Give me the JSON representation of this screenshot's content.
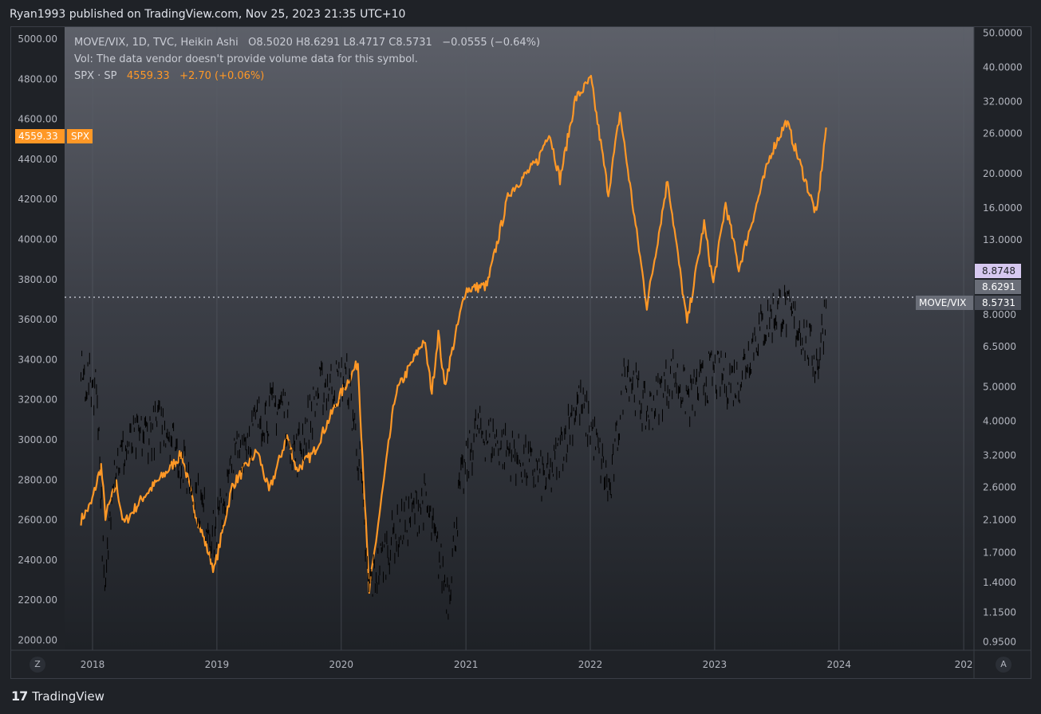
{
  "publisher_line": "Ryan1993 published on TradingView.com, Nov 25, 2023 21:35 UTC+10",
  "legend": {
    "main_symbol": "MOVE/VIX, 1D, TVC, Heikin Ashi",
    "ohlc": "O8.5020  H8.6291  L8.4717  C8.5731",
    "change": "−0.0555 (−0.64%)",
    "vol_note": "Vol: The data vendor doesn't provide volume data for this symbol.",
    "overlay_symbol": "SPX · SP",
    "overlay_value": "4559.33",
    "overlay_change": "+2.70 (+0.06%)"
  },
  "footer": {
    "brand": "TradingView",
    "brand_mark": "17"
  },
  "corner_buttons": {
    "left": "Z",
    "right": "A"
  },
  "colors": {
    "spx": "#ff9826",
    "move_vix": "#000000",
    "background_top": "#5d6069",
    "background_bottom": "#1e2126"
  },
  "chart_data": {
    "type": "line",
    "x_ticks": [
      "2018",
      "2019",
      "2020",
      "2021",
      "2022",
      "2023",
      "2024",
      "202"
    ],
    "left_axis": {
      "ticks": [
        "5000.00",
        "4800.00",
        "4600.00",
        "4400.00",
        "4200.00",
        "4000.00",
        "3800.00",
        "3600.00",
        "3400.00",
        "3200.00",
        "3000.00",
        "2800.00",
        "2600.00",
        "2400.00",
        "2200.00",
        "2000.00"
      ],
      "range": [
        1950,
        5060
      ]
    },
    "right_axis": {
      "scale": "log",
      "ticks": [
        "50.0000",
        "40.0000",
        "32.0000",
        "26.0000",
        "20.0000",
        "16.0000",
        "13.0000",
        "8.0000",
        "6.5000",
        "5.0000",
        "4.0000",
        "3.2000",
        "2.6000",
        "2.1000",
        "1.7000",
        "1.4000",
        "1.1500",
        "0.9500"
      ],
      "range": [
        0.9,
        52
      ]
    },
    "labels": {
      "spx_value": "4559.33",
      "spx_name": "SPX",
      "move_vix_high": "8.8748",
      "move_vix_mid": "8.6291",
      "move_vix_name": "MOVE/VIX",
      "move_vix_close": "8.5731"
    },
    "series": [
      {
        "name": "SPX",
        "axis": "left",
        "points": [
          [
            "2017-11-28",
            2600
          ],
          [
            "2017-12-28",
            2680
          ],
          [
            "2018-01-26",
            2870
          ],
          [
            "2018-02-08",
            2620
          ],
          [
            "2018-03-12",
            2780
          ],
          [
            "2018-04-02",
            2580
          ],
          [
            "2018-06-01",
            2720
          ],
          [
            "2018-08-01",
            2830
          ],
          [
            "2018-09-20",
            2930
          ],
          [
            "2018-10-29",
            2640
          ],
          [
            "2018-12-24",
            2350
          ],
          [
            "2019-02-15",
            2770
          ],
          [
            "2019-04-30",
            2945
          ],
          [
            "2019-06-03",
            2740
          ],
          [
            "2019-07-26",
            3020
          ],
          [
            "2019-08-23",
            2850
          ],
          [
            "2019-10-10",
            2930
          ],
          [
            "2019-12-31",
            3230
          ],
          [
            "2020-02-19",
            3385
          ],
          [
            "2020-03-23",
            2240
          ],
          [
            "2020-06-08",
            3230
          ],
          [
            "2020-08-31",
            3500
          ],
          [
            "2020-09-23",
            3240
          ],
          [
            "2020-10-12",
            3535
          ],
          [
            "2020-10-30",
            3270
          ],
          [
            "2020-12-31",
            3750
          ],
          [
            "2021-03-04",
            3770
          ],
          [
            "2021-05-07",
            4230
          ],
          [
            "2021-07-30",
            4390
          ],
          [
            "2021-09-02",
            4540
          ],
          [
            "2021-10-04",
            4300
          ],
          [
            "2021-11-18",
            4700
          ],
          [
            "2022-01-03",
            4800
          ],
          [
            "2022-02-23",
            4230
          ],
          [
            "2022-03-29",
            4630
          ],
          [
            "2022-06-16",
            3670
          ],
          [
            "2022-08-16",
            4300
          ],
          [
            "2022-10-12",
            3580
          ],
          [
            "2022-12-01",
            4080
          ],
          [
            "2022-12-28",
            3780
          ],
          [
            "2023-02-02",
            4180
          ],
          [
            "2023-03-13",
            3855
          ],
          [
            "2023-06-15",
            4430
          ],
          [
            "2023-07-31",
            4590
          ],
          [
            "2023-10-27",
            4120
          ],
          [
            "2023-11-24",
            4559
          ]
        ]
      },
      {
        "name": "MOVE/VIX",
        "axis": "right",
        "points": [
          [
            "2017-11-28",
            5.4
          ],
          [
            "2018-01-15",
            5.0
          ],
          [
            "2018-02-06",
            1.2
          ],
          [
            "2018-03-01",
            3.0
          ],
          [
            "2018-05-01",
            3.5
          ],
          [
            "2018-08-01",
            4.0
          ],
          [
            "2018-10-15",
            2.7
          ],
          [
            "2018-12-24",
            1.9
          ],
          [
            "2019-03-01",
            3.3
          ],
          [
            "2019-05-15",
            4.2
          ],
          [
            "2019-07-15",
            4.5
          ],
          [
            "2019-08-20",
            3.2
          ],
          [
            "2019-11-01",
            5.0
          ],
          [
            "2020-01-20",
            5.3
          ],
          [
            "2020-02-25",
            3.0
          ],
          [
            "2020-03-20",
            1.35
          ],
          [
            "2020-06-01",
            1.9
          ],
          [
            "2020-09-01",
            2.4
          ],
          [
            "2020-11-10",
            1.3
          ],
          [
            "2020-12-15",
            2.6
          ],
          [
            "2021-02-01",
            3.8
          ],
          [
            "2021-04-01",
            3.5
          ],
          [
            "2021-06-15",
            3.1
          ],
          [
            "2021-09-01",
            2.7
          ],
          [
            "2021-11-26",
            4.6
          ],
          [
            "2022-01-01",
            3.9
          ],
          [
            "2022-03-01",
            2.5
          ],
          [
            "2022-04-15",
            5.8
          ],
          [
            "2022-06-15",
            4.2
          ],
          [
            "2022-09-01",
            5.5
          ],
          [
            "2022-10-20",
            4.6
          ],
          [
            "2022-12-20",
            5.5
          ],
          [
            "2023-03-10",
            5.2
          ],
          [
            "2023-05-01",
            7.0
          ],
          [
            "2023-07-15",
            8.5
          ],
          [
            "2023-09-15",
            7.2
          ],
          [
            "2023-10-30",
            5.8
          ],
          [
            "2023-11-24",
            8.5731
          ]
        ]
      }
    ]
  }
}
